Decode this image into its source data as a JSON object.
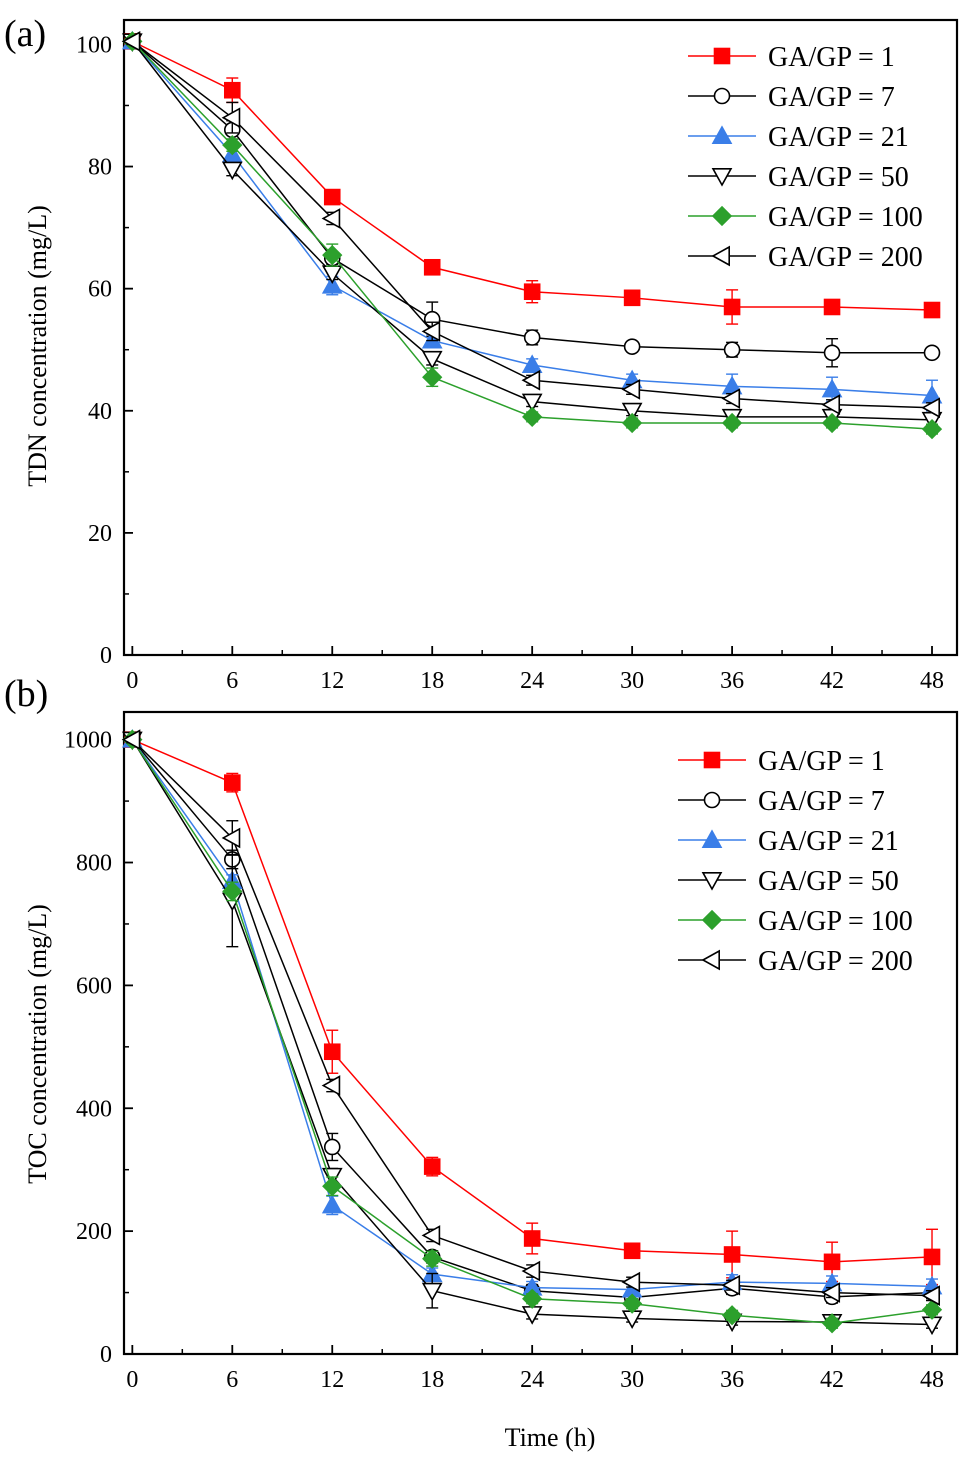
{
  "figure": {
    "xlabel": "Time (h)"
  },
  "chart_data": [
    {
      "type": "line",
      "panel_label": "(a)",
      "title": "",
      "xlabel": "",
      "ylabel": "TDN concentration (mg/L)",
      "x": [
        0,
        6,
        12,
        18,
        24,
        30,
        36,
        42,
        48
      ],
      "xlim": [
        -0.5,
        49.5
      ],
      "ylim": [
        0,
        104
      ],
      "xticks": [
        0,
        6,
        12,
        18,
        24,
        30,
        36,
        42,
        48
      ],
      "yticks": [
        0,
        20,
        40,
        60,
        80,
        100
      ],
      "grid": false,
      "legend_position": "top-right",
      "series": [
        {
          "name": "GA/GP = 1",
          "color": "#ff0000",
          "marker": "square",
          "filled": true,
          "values": [
            100.5,
            92.5,
            75.0,
            63.5,
            59.5,
            58.5,
            57.0,
            57.0,
            56.5
          ],
          "errors": [
            0.5,
            2.0,
            0.8,
            0.8,
            1.8,
            0.8,
            2.8,
            0.5,
            1.2
          ]
        },
        {
          "name": "GA/GP = 7",
          "color": "#000000",
          "marker": "circle",
          "filled": false,
          "values": [
            100.5,
            86.0,
            65.0,
            55.0,
            52.0,
            50.5,
            50.0,
            49.5,
            49.5
          ],
          "errors": [
            0.5,
            1.5,
            1.0,
            2.8,
            1.2,
            0.8,
            1.2,
            2.3,
            0.8
          ]
        },
        {
          "name": "GA/GP = 21",
          "color": "#3a7ee8",
          "marker": "triangle-up",
          "filled": true,
          "values": [
            100.5,
            82.0,
            60.5,
            51.5,
            47.5,
            45.0,
            44.0,
            43.5,
            42.5
          ],
          "errors": [
            0.5,
            1.0,
            1.5,
            1.0,
            1.0,
            1.0,
            2.0,
            2.0,
            2.5
          ]
        },
        {
          "name": "GA/GP = 50",
          "color": "#000000",
          "marker": "triangle-down",
          "filled": false,
          "values": [
            100.5,
            79.5,
            62.5,
            48.5,
            41.5,
            40.0,
            39.0,
            39.0,
            38.5
          ],
          "errors": [
            0.5,
            1.0,
            1.0,
            1.0,
            0.8,
            0.8,
            0.8,
            0.8,
            0.8
          ]
        },
        {
          "name": "GA/GP = 100",
          "color": "#2ca02c",
          "marker": "diamond",
          "filled": true,
          "values": [
            100.5,
            83.5,
            65.5,
            45.5,
            39.0,
            38.0,
            38.0,
            38.0,
            37.0
          ],
          "errors": [
            0.5,
            1.0,
            1.8,
            1.5,
            0.8,
            0.8,
            0.8,
            0.8,
            0.8
          ]
        },
        {
          "name": "GA/GP = 200",
          "color": "#000000",
          "marker": "triangle-left",
          "filled": false,
          "values": [
            100.5,
            88.0,
            71.5,
            53.0,
            45.0,
            43.5,
            42.0,
            41.0,
            40.5
          ],
          "errors": [
            0.5,
            2.5,
            1.0,
            1.5,
            0.8,
            0.8,
            0.8,
            0.8,
            0.8
          ]
        }
      ]
    },
    {
      "type": "line",
      "panel_label": "(b)",
      "title": "",
      "xlabel": "Time (h)",
      "ylabel": "TOC concentration (mg/L)",
      "x": [
        0,
        6,
        12,
        18,
        24,
        30,
        36,
        42,
        48
      ],
      "xlim": [
        -0.5,
        49.5
      ],
      "ylim": [
        0,
        1045
      ],
      "xticks": [
        0,
        6,
        12,
        18,
        24,
        30,
        36,
        42,
        48
      ],
      "yticks": [
        0,
        200,
        400,
        600,
        800,
        1000
      ],
      "grid": false,
      "legend_position": "top-right",
      "series": [
        {
          "name": "GA/GP = 1",
          "color": "#ff0000",
          "marker": "square",
          "filled": true,
          "values": [
            1000,
            930,
            492,
            305,
            188,
            168,
            162,
            150,
            158
          ],
          "errors": [
            5,
            15,
            35,
            15,
            25,
            8,
            38,
            32,
            45
          ]
        },
        {
          "name": "GA/GP = 7",
          "color": "#000000",
          "marker": "circle",
          "filled": false,
          "values": [
            1000,
            805,
            337,
            158,
            103,
            92,
            107,
            93,
            100
          ],
          "errors": [
            5,
            15,
            22,
            10,
            10,
            10,
            10,
            10,
            10
          ]
        },
        {
          "name": "GA/GP = 21",
          "color": "#3a7ee8",
          "marker": "triangle-up",
          "filled": true,
          "values": [
            1000,
            770,
            242,
            130,
            108,
            105,
            117,
            115,
            110
          ],
          "errors": [
            5,
            10,
            15,
            10,
            10,
            8,
            12,
            12,
            12
          ]
        },
        {
          "name": "GA/GP = 50",
          "color": "#000000",
          "marker": "triangle-down",
          "filled": false,
          "values": [
            1000,
            738,
            290,
            103,
            65,
            58,
            53,
            52,
            48
          ],
          "errors": [
            5,
            75,
            12,
            28,
            8,
            6,
            6,
            6,
            6
          ]
        },
        {
          "name": "GA/GP = 100",
          "color": "#2ca02c",
          "marker": "diamond",
          "filled": true,
          "values": [
            1000,
            753,
            273,
            155,
            90,
            82,
            63,
            50,
            72
          ],
          "errors": [
            5,
            15,
            15,
            12,
            8,
            8,
            8,
            8,
            8
          ]
        },
        {
          "name": "GA/GP = 200",
          "color": "#000000",
          "marker": "triangle-left",
          "filled": false,
          "values": [
            1000,
            840,
            437,
            193,
            135,
            117,
            112,
            100,
            95
          ],
          "errors": [
            5,
            28,
            10,
            10,
            10,
            8,
            8,
            8,
            8
          ]
        }
      ]
    }
  ]
}
